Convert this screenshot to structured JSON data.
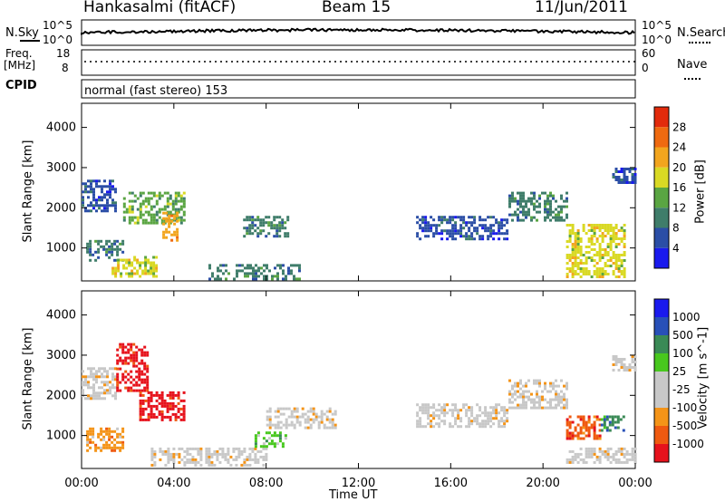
{
  "header": {
    "station": "Hankasalmi (fitACF)",
    "beam": "Beam 15",
    "date": "11/Jun/2011"
  },
  "noise_panel": {
    "left_label": "N.Sky",
    "right_label": "N.Search",
    "ticks": [
      "10^5",
      "10^0"
    ]
  },
  "freq_panel": {
    "left_label_line1": "Freq.",
    "left_label_line2": "[MHz]",
    "right_label": "Nave",
    "left_ticks": [
      "18",
      "8"
    ],
    "right_ticks": [
      "60",
      "0"
    ]
  },
  "cpid_panel": {
    "label": "CPID",
    "value": "normal (fast stereo) 153"
  },
  "colors": {
    "power": [
      "#1a1aee",
      "#2b4ea6",
      "#3f7d6a",
      "#5aa542",
      "#d9d924",
      "#f2a51e",
      "#ef6a10",
      "#e22b0c"
    ],
    "velocity": [
      "#e6121c",
      "#ef5a10",
      "#f49418",
      "#c8c8c8",
      "#c8c8c8",
      "#48c81e",
      "#3a8a56",
      "#2850b8",
      "#1a1aee"
    ]
  },
  "chart_data": [
    {
      "type": "heatmap",
      "panel": "power",
      "ylabel": "Slant Range [km]",
      "xlabel": "",
      "colorbar_label": "Power [dB]",
      "colorbar_ticks": [
        "28",
        "24",
        "20",
        "16",
        "12",
        "8",
        "4"
      ],
      "x_ticks": [
        "00:00",
        "04:00",
        "08:00",
        "12:00",
        "16:00",
        "20:00",
        "00:00"
      ],
      "y_ticks": [
        "1000",
        "2000",
        "3000",
        "4000"
      ],
      "xlim_hours": [
        0,
        24
      ],
      "ylim_km": [
        180,
        4600
      ],
      "regions": [
        {
          "t0": 0.0,
          "t1": 1.5,
          "r0": 1900,
          "r1": 2700,
          "level": 1
        },
        {
          "t0": 0.2,
          "t1": 1.8,
          "r0": 700,
          "r1": 1200,
          "level": 2
        },
        {
          "t0": 1.3,
          "t1": 3.2,
          "r0": 300,
          "r1": 800,
          "level": 4
        },
        {
          "t0": 1.8,
          "t1": 4.5,
          "r0": 1600,
          "r1": 2400,
          "level": 3
        },
        {
          "t0": 3.5,
          "t1": 4.2,
          "r0": 1200,
          "r1": 1900,
          "level": 5
        },
        {
          "t0": 5.5,
          "t1": 9.5,
          "r0": 250,
          "r1": 600,
          "level": 2
        },
        {
          "t0": 7.0,
          "t1": 9.0,
          "r0": 1300,
          "r1": 1800,
          "level": 2
        },
        {
          "t0": 14.5,
          "t1": 18.5,
          "r0": 1200,
          "r1": 1800,
          "level": 1
        },
        {
          "t0": 18.5,
          "t1": 21.0,
          "r0": 1700,
          "r1": 2400,
          "level": 2
        },
        {
          "t0": 21.0,
          "t1": 23.5,
          "r0": 300,
          "r1": 1600,
          "level": 4
        },
        {
          "t0": 23.0,
          "t1": 24.0,
          "r0": 2600,
          "r1": 3000,
          "level": 1
        }
      ]
    },
    {
      "type": "heatmap",
      "panel": "velocity",
      "ylabel": "Slant Range [km]",
      "xlabel": "Time UT",
      "colorbar_label": "Velocity [m s^-1]",
      "colorbar_ticks": [
        "1000",
        "500",
        "100",
        "25",
        "-25",
        "-100",
        "-500",
        "-1000"
      ],
      "x_ticks": [
        "00:00",
        "04:00",
        "08:00",
        "12:00",
        "16:00",
        "20:00",
        "00:00"
      ],
      "y_ticks": [
        "1000",
        "2000",
        "3000",
        "4000"
      ],
      "xlim_hours": [
        0,
        24
      ],
      "ylim_km": [
        180,
        4600
      ],
      "regions": [
        {
          "t0": 0.0,
          "t1": 1.5,
          "r0": 1900,
          "r1": 2700,
          "level": 3
        },
        {
          "t0": 0.2,
          "t1": 1.8,
          "r0": 600,
          "r1": 1200,
          "level": 2
        },
        {
          "t0": 1.5,
          "t1": 2.8,
          "r0": 2100,
          "r1": 3300,
          "level": 0
        },
        {
          "t0": 2.5,
          "t1": 4.5,
          "r0": 1400,
          "r1": 2100,
          "level": 0
        },
        {
          "t0": 3.0,
          "t1": 8.0,
          "r0": 250,
          "r1": 700,
          "level": 3
        },
        {
          "t0": 7.5,
          "t1": 8.8,
          "r0": 700,
          "r1": 1100,
          "level": 5
        },
        {
          "t0": 8.0,
          "t1": 11.0,
          "r0": 1200,
          "r1": 1700,
          "level": 3
        },
        {
          "t0": 14.5,
          "t1": 18.5,
          "r0": 1200,
          "r1": 1800,
          "level": 3
        },
        {
          "t0": 18.5,
          "t1": 21.0,
          "r0": 1700,
          "r1": 2400,
          "level": 3
        },
        {
          "t0": 21.0,
          "t1": 22.5,
          "r0": 900,
          "r1": 1500,
          "level": 1
        },
        {
          "t0": 22.5,
          "t1": 23.5,
          "r0": 1100,
          "r1": 1500,
          "level": 6
        },
        {
          "t0": 21.0,
          "t1": 24.0,
          "r0": 300,
          "r1": 700,
          "level": 3
        },
        {
          "t0": 23.0,
          "t1": 24.0,
          "r0": 2600,
          "r1": 3000,
          "level": 3
        }
      ]
    }
  ]
}
